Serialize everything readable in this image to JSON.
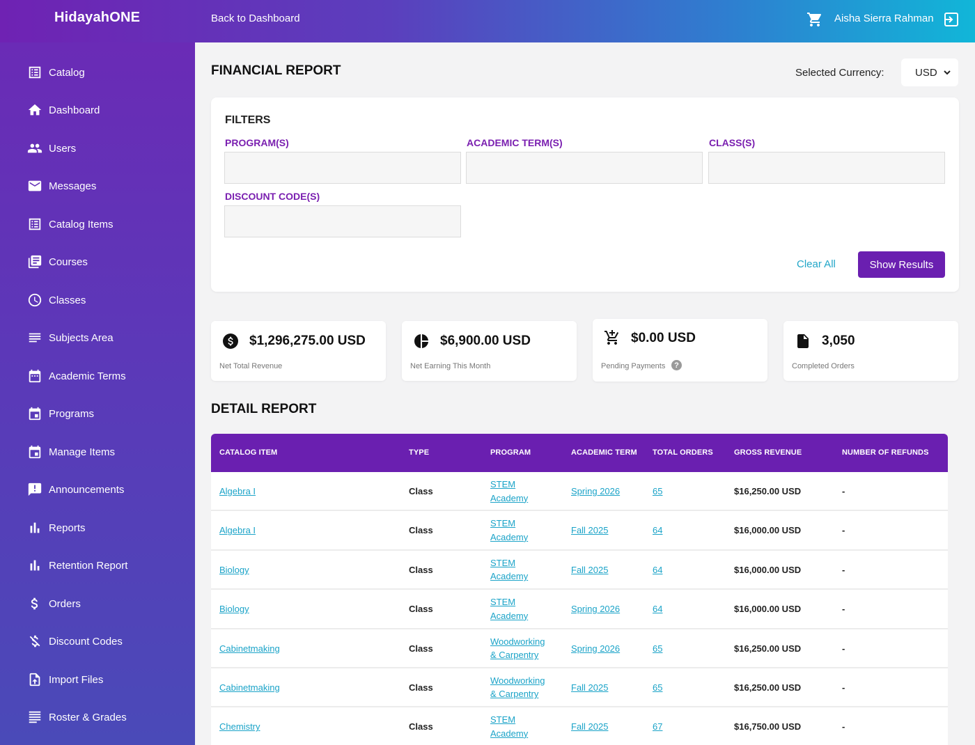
{
  "topbar": {
    "logo": "HidayahONE",
    "back_link": "Back to Dashboard",
    "user_name": "Aisha Sierra Rahman"
  },
  "sidebar": {
    "items": [
      {
        "label": "Catalog",
        "icon": "catalog-icon"
      },
      {
        "label": "Dashboard",
        "icon": "home-icon"
      },
      {
        "label": "Users",
        "icon": "users-icon"
      },
      {
        "label": "Messages",
        "icon": "mail-icon"
      },
      {
        "label": "Catalog Items",
        "icon": "catalog-items-icon"
      },
      {
        "label": "Courses",
        "icon": "library-icon"
      },
      {
        "label": "Classes",
        "icon": "clock-icon"
      },
      {
        "label": "Subjects Area",
        "icon": "list-icon"
      },
      {
        "label": "Academic Terms",
        "icon": "calendar-icon"
      },
      {
        "label": "Programs",
        "icon": "calendar-event-icon"
      },
      {
        "label": "Manage Items",
        "icon": "calendar-event-icon"
      },
      {
        "label": "Announcements",
        "icon": "announcement-icon"
      },
      {
        "label": "Reports",
        "icon": "bar-chart-icon"
      },
      {
        "label": "Retention Report",
        "icon": "bar-chart-icon"
      },
      {
        "label": "Orders",
        "icon": "dollar-icon"
      },
      {
        "label": "Discount Codes",
        "icon": "no-money-icon"
      },
      {
        "label": "Import Files",
        "icon": "import-file-icon"
      },
      {
        "label": "Roster & Grades",
        "icon": "roster-icon"
      }
    ]
  },
  "main": {
    "title": "FINANCIAL REPORT",
    "currency_label": "Selected Currency:",
    "currency_value": "USD",
    "filters": {
      "title": "FILTERS",
      "program_label": "PROGRAM(S)",
      "term_label": "ACADEMIC TERM(S)",
      "class_label": "CLASS(S)",
      "discount_label": "DISCOUNT CODE(S)",
      "clear_all": "Clear All",
      "show_results": "Show Results"
    },
    "stats": [
      {
        "value": "$1,296,275.00 USD",
        "label": "Net Total Revenue",
        "icon": "dollar-circle-icon"
      },
      {
        "value": "$6,900.00 USD",
        "label": "Net Earning This Month",
        "icon": "pie-chart-icon"
      },
      {
        "value": "$0.00 USD",
        "label": "Pending Payments",
        "icon": "cart-icon"
      },
      {
        "value": "3,050",
        "label": "Completed Orders",
        "icon": "document-icon"
      }
    ],
    "detail_title": "DETAIL REPORT",
    "table": {
      "headers": [
        "CATALOG ITEM",
        "TYPE",
        "PROGRAM",
        "ACADEMIC TERM",
        "TOTAL ORDERS",
        "GROSS REVENUE",
        "NUMBER OF REFUNDS"
      ],
      "rows": [
        {
          "item": "Algebra I",
          "type": "Class",
          "program_1": "STEM",
          "program_2": "Academy",
          "term": "Spring 2026",
          "orders": "65",
          "revenue": "$16,250.00 USD",
          "refunds": "-"
        },
        {
          "item": "Algebra I",
          "type": "Class",
          "program_1": "STEM",
          "program_2": "Academy",
          "term": "Fall 2025",
          "orders": "64",
          "revenue": "$16,000.00 USD",
          "refunds": "-"
        },
        {
          "item": "Biology",
          "type": "Class",
          "program_1": "STEM",
          "program_2": "Academy",
          "term": "Fall 2025",
          "orders": "64",
          "revenue": "$16,000.00 USD",
          "refunds": "-"
        },
        {
          "item": "Biology",
          "type": "Class",
          "program_1": "STEM",
          "program_2": "Academy",
          "term": "Spring 2026",
          "orders": "64",
          "revenue": "$16,000.00 USD",
          "refunds": "-"
        },
        {
          "item": "Cabinetmaking",
          "type": "Class",
          "program_1": "Woodworking",
          "program_2": "& Carpentry",
          "term": "Spring 2026",
          "orders": "65",
          "revenue": "$16,250.00 USD",
          "refunds": "-"
        },
        {
          "item": "Cabinetmaking",
          "type": "Class",
          "program_1": "Woodworking",
          "program_2": "& Carpentry",
          "term": "Fall 2025",
          "orders": "65",
          "revenue": "$16,250.00 USD",
          "refunds": "-"
        },
        {
          "item": "Chemistry",
          "type": "Class",
          "program_1": "STEM",
          "program_2": "Academy",
          "term": "Fall 2025",
          "orders": "67",
          "revenue": "$16,750.00 USD",
          "refunds": "-"
        }
      ]
    }
  }
}
